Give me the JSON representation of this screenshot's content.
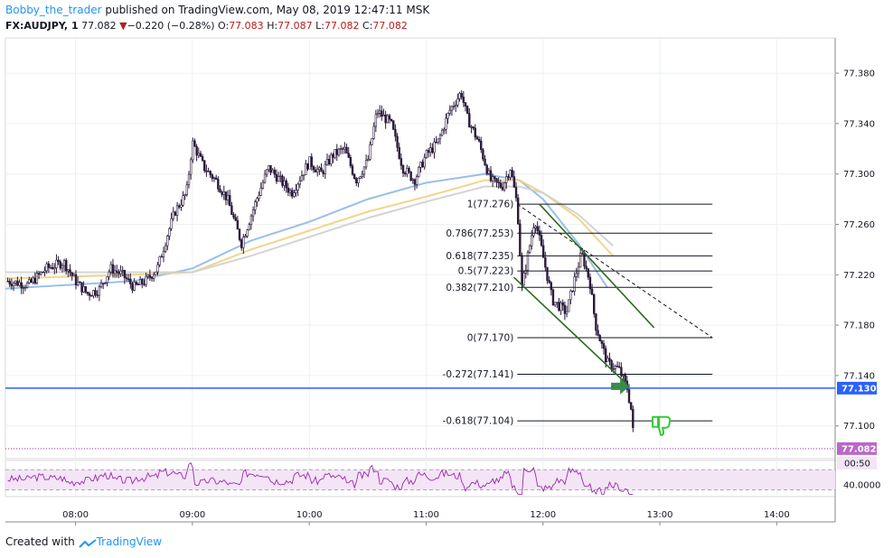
{
  "header": {
    "author": "Bobby_the_trader",
    "published_text": " published on TradingView.com, May 08, 2019 12:47:11 MSK",
    "symbol": "FX:AUDJPY, 1",
    "last": "77.082",
    "change_arrow": "▼",
    "change": "−0.220 (−0.28%)",
    "o_label": "O:",
    "o_value": "77.083",
    "h_label": "H:",
    "h_value": "77.087",
    "l_label": "L:",
    "l_value": "77.082",
    "c_label": "C:",
    "c_value": "77.082"
  },
  "footer": {
    "prefix": "Created with",
    "brand": "TradingView"
  },
  "colors": {
    "candle": "#2a1a3a",
    "ma_fast": "#90b8e8",
    "ma_mid": "#f0d080",
    "ma_slow": "#cfcfcf",
    "support": "#2962ff",
    "channel": "#2e6b1e",
    "rsi": "#9c27b0",
    "rsi_band": "#f3e5f5",
    "thumb": "#33cc33",
    "arrow": "#3a8a4a"
  },
  "chart_data": {
    "type": "candlestick",
    "symbol": "FX:AUDJPY",
    "timeframe": "1",
    "y_ticks": [
      "77.380",
      "77.340",
      "77.300",
      "77.260",
      "77.220",
      "77.180",
      "77.140",
      "77.100"
    ],
    "ylim": [
      77.074,
      77.408
    ],
    "x_ticks": [
      "08:00",
      "09:00",
      "10:00",
      "11:00",
      "12:00",
      "13:00",
      "14:00"
    ],
    "xlim_hours": [
      7.4,
      14.5
    ],
    "price_path": [
      [
        7.42,
        77.215
      ],
      [
        7.6,
        77.212
      ],
      [
        7.75,
        77.225
      ],
      [
        7.9,
        77.23
      ],
      [
        8.0,
        77.215
      ],
      [
        8.1,
        77.205
      ],
      [
        8.2,
        77.208
      ],
      [
        8.3,
        77.225
      ],
      [
        8.4,
        77.22
      ],
      [
        8.5,
        77.21
      ],
      [
        8.6,
        77.215
      ],
      [
        8.7,
        77.225
      ],
      [
        8.78,
        77.25
      ],
      [
        8.85,
        77.27
      ],
      [
        8.95,
        77.285
      ],
      [
        9.0,
        77.325
      ],
      [
        9.1,
        77.305
      ],
      [
        9.2,
        77.295
      ],
      [
        9.3,
        77.28
      ],
      [
        9.42,
        77.245
      ],
      [
        9.55,
        77.28
      ],
      [
        9.65,
        77.305
      ],
      [
        9.75,
        77.295
      ],
      [
        9.85,
        77.285
      ],
      [
        10.0,
        77.31
      ],
      [
        10.1,
        77.3
      ],
      [
        10.2,
        77.315
      ],
      [
        10.3,
        77.32
      ],
      [
        10.4,
        77.295
      ],
      [
        10.5,
        77.31
      ],
      [
        10.58,
        77.35
      ],
      [
        10.7,
        77.34
      ],
      [
        10.8,
        77.305
      ],
      [
        10.9,
        77.295
      ],
      [
        11.0,
        77.315
      ],
      [
        11.1,
        77.325
      ],
      [
        11.2,
        77.35
      ],
      [
        11.3,
        77.365
      ],
      [
        11.35,
        77.345
      ],
      [
        11.45,
        77.325
      ],
      [
        11.55,
        77.295
      ],
      [
        11.65,
        77.29
      ],
      [
        11.72,
        77.305
      ],
      [
        11.78,
        77.275
      ],
      [
        11.82,
        77.21
      ],
      [
        11.87,
        77.235
      ],
      [
        11.93,
        77.265
      ],
      [
        12.0,
        77.235
      ],
      [
        12.08,
        77.2
      ],
      [
        12.2,
        77.19
      ],
      [
        12.28,
        77.22
      ],
      [
        12.33,
        77.237
      ],
      [
        12.4,
        77.215
      ],
      [
        12.45,
        77.18
      ],
      [
        12.55,
        77.15
      ],
      [
        12.65,
        77.145
      ],
      [
        12.72,
        77.13
      ],
      [
        12.76,
        77.11
      ],
      [
        12.78,
        77.082
      ]
    ],
    "moving_averages": [
      {
        "points": [
          [
            7.4,
            77.209
          ],
          [
            8.5,
            77.215
          ],
          [
            9.0,
            77.225
          ],
          [
            9.5,
            77.247
          ],
          [
            10.0,
            77.262
          ],
          [
            10.5,
            77.28
          ],
          [
            11.0,
            77.293
          ],
          [
            11.5,
            77.3
          ],
          [
            11.8,
            77.295
          ],
          [
            12.0,
            77.28
          ],
          [
            12.3,
            77.245
          ],
          [
            12.55,
            77.21
          ]
        ]
      },
      {
        "points": [
          [
            7.4,
            77.217
          ],
          [
            8.5,
            77.22
          ],
          [
            9.0,
            77.222
          ],
          [
            9.5,
            77.24
          ],
          [
            10.0,
            77.255
          ],
          [
            10.5,
            77.27
          ],
          [
            11.0,
            77.282
          ],
          [
            11.5,
            77.295
          ],
          [
            11.8,
            77.295
          ],
          [
            12.0,
            77.285
          ],
          [
            12.3,
            77.265
          ],
          [
            12.6,
            77.235
          ]
        ]
      },
      {
        "points": [
          [
            7.4,
            77.222
          ],
          [
            8.5,
            77.222
          ],
          [
            9.0,
            77.222
          ],
          [
            9.5,
            77.235
          ],
          [
            10.0,
            77.25
          ],
          [
            10.5,
            77.265
          ],
          [
            11.0,
            77.278
          ],
          [
            11.5,
            77.29
          ],
          [
            11.8,
            77.29
          ],
          [
            12.0,
            77.285
          ],
          [
            12.3,
            77.268
          ],
          [
            12.6,
            77.243
          ]
        ]
      }
    ],
    "support_level": {
      "value": 77.13,
      "label": "77.130"
    },
    "last_price": {
      "value": 77.082,
      "label": "77.082",
      "countdown": "00:50"
    },
    "fibonacci": {
      "x_start_hours": 11.78,
      "x_end_hours": 13.45,
      "levels": [
        {
          "ratio": "1",
          "price": 77.276,
          "label": "1(77.276)"
        },
        {
          "ratio": "0.786",
          "price": 77.253,
          "label": "0.786(77.253)"
        },
        {
          "ratio": "0.618",
          "price": 77.235,
          "label": "0.618(77.235)"
        },
        {
          "ratio": "0.5",
          "price": 77.223,
          "label": "0.5(77.223)"
        },
        {
          "ratio": "0.382",
          "price": 77.21,
          "label": "0.382(77.210)"
        },
        {
          "ratio": "0",
          "price": 77.17,
          "label": "0(77.170)"
        },
        {
          "ratio": "-0.272",
          "price": 77.141,
          "label": "-0.272(77.141)"
        },
        {
          "ratio": "-0.618",
          "price": 77.104,
          "label": "-0.618(77.104)"
        }
      ],
      "trend_line": [
        [
          11.78,
          77.276
        ],
        [
          13.45,
          77.17
        ]
      ]
    },
    "channel_lines": [
      [
        [
          11.97,
          77.276
        ],
        [
          12.95,
          77.178
        ]
      ],
      [
        [
          11.75,
          77.218
        ],
        [
          12.72,
          77.133
        ]
      ]
    ],
    "rsi": {
      "tick_label": "40.0000",
      "upper": 70,
      "lower": 30,
      "ylim": [
        20,
        85
      ]
    }
  }
}
